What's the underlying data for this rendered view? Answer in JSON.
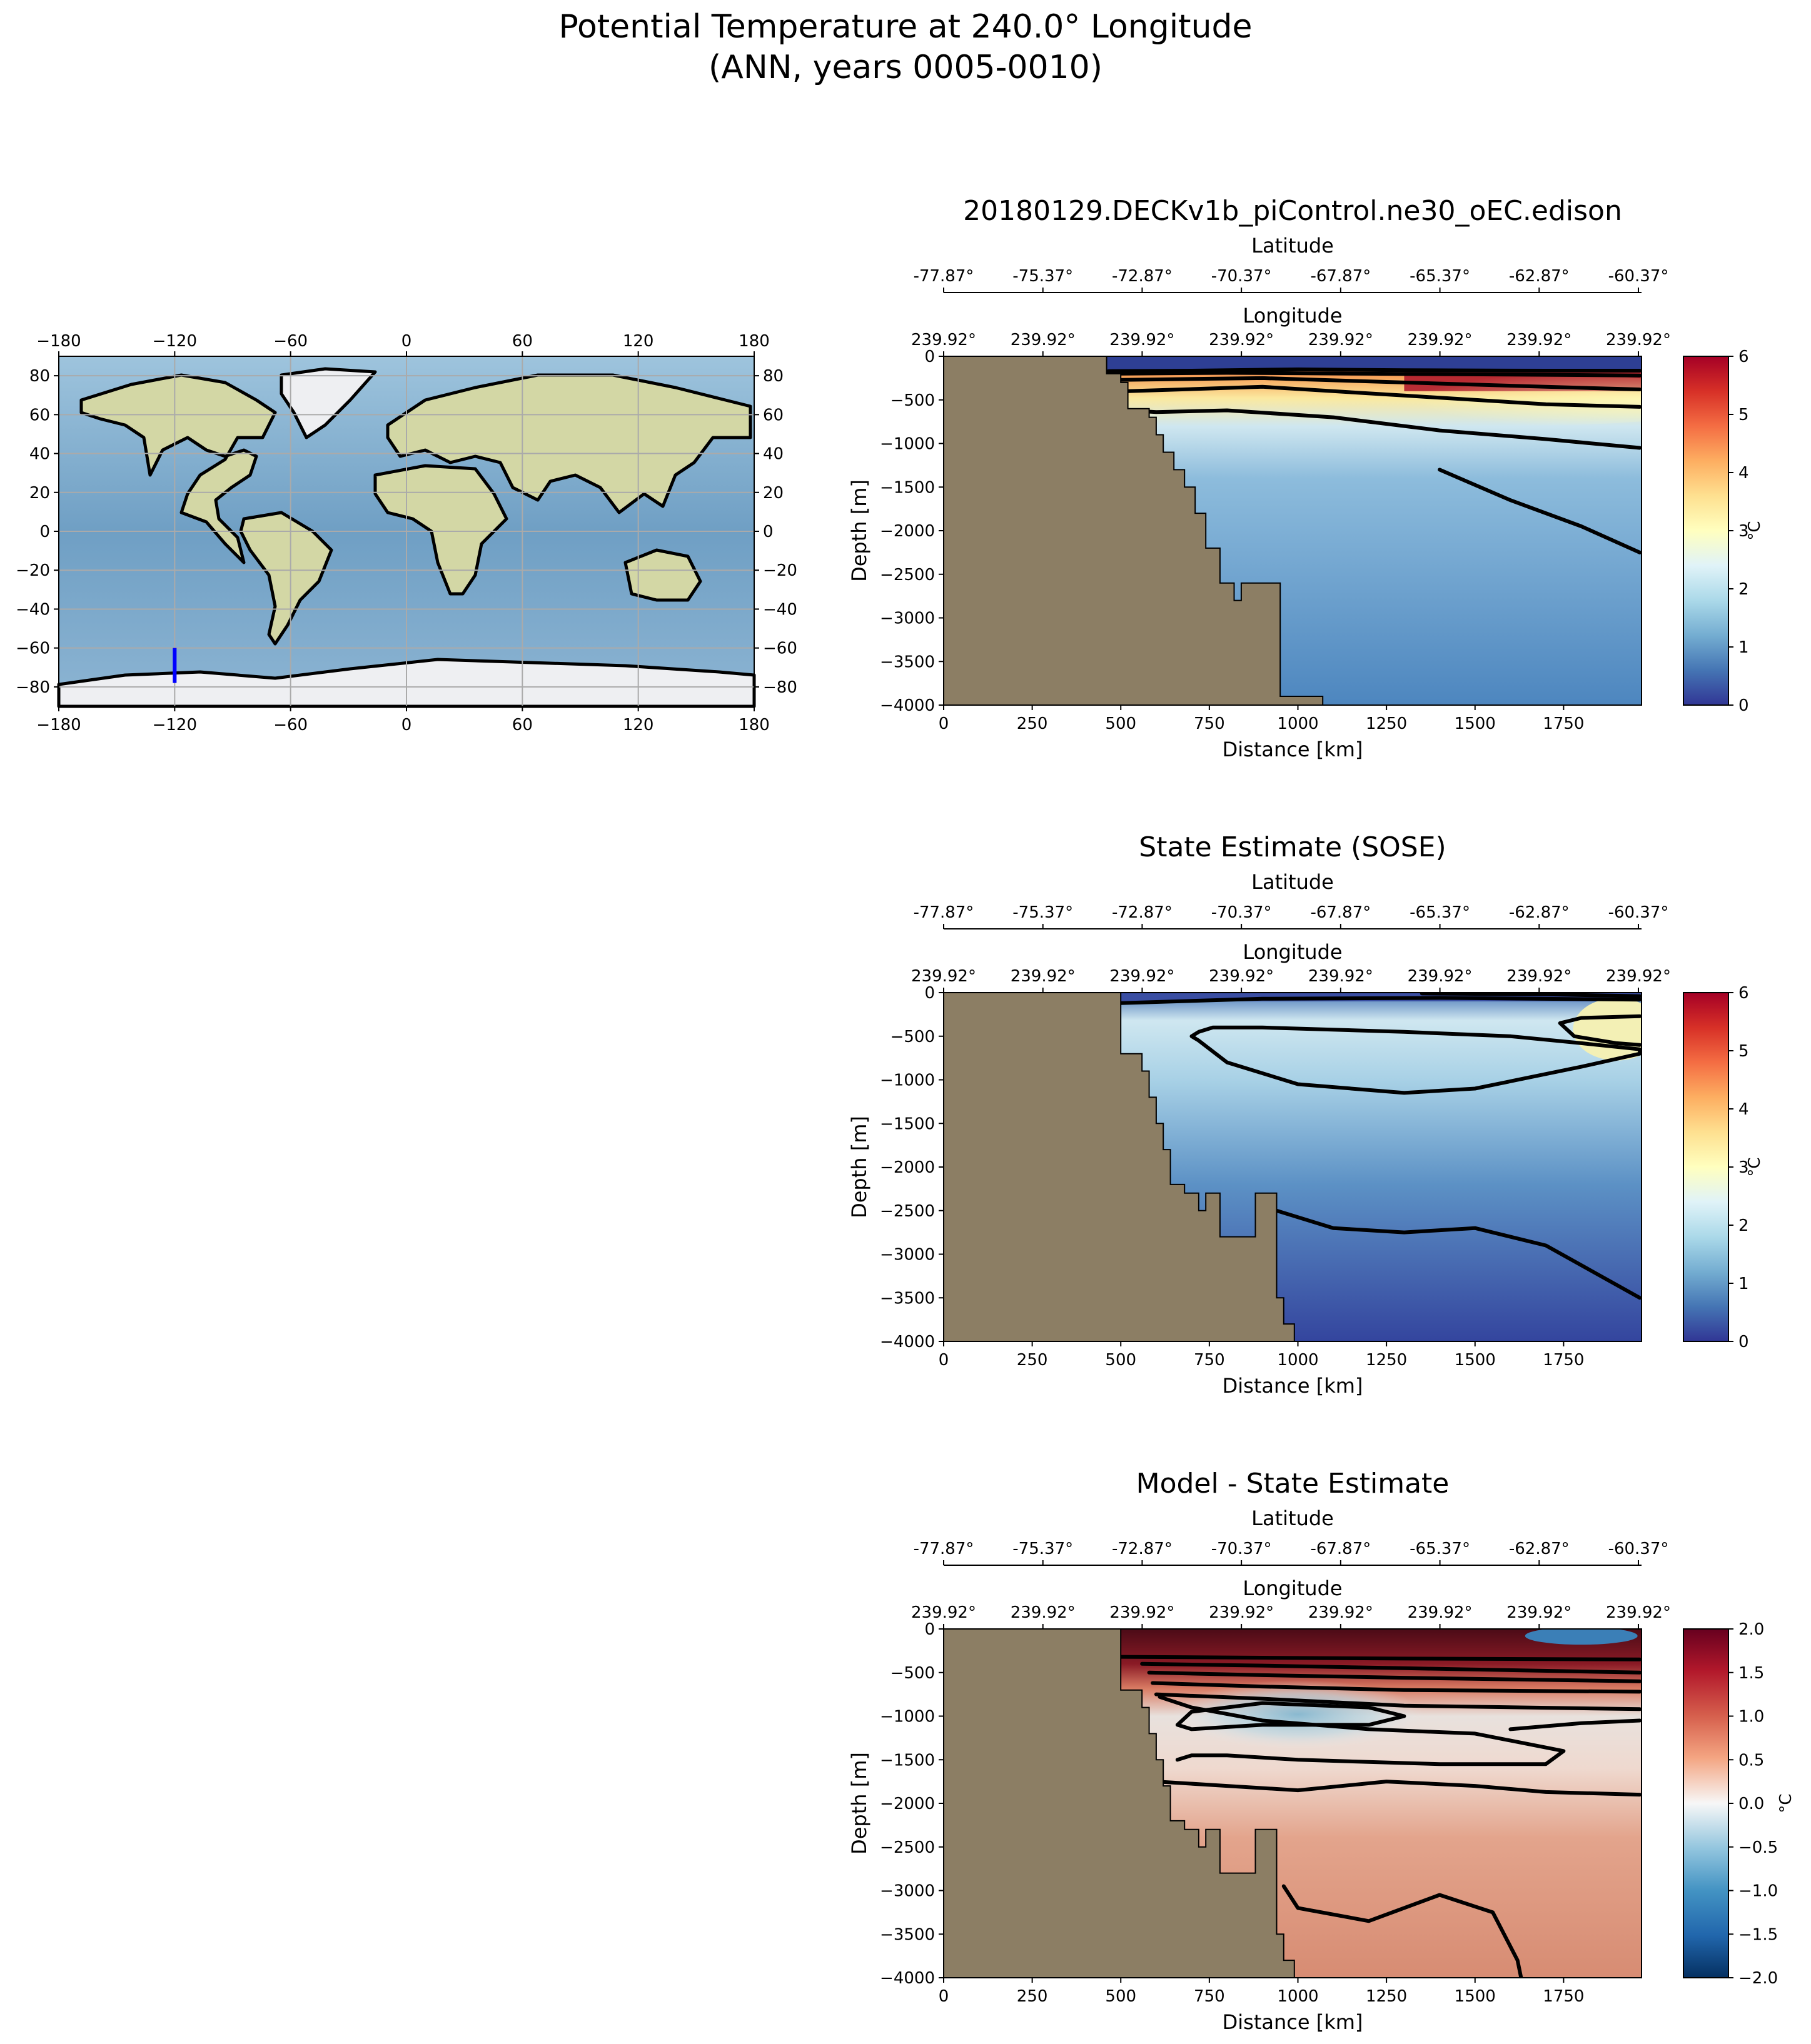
{
  "figure": {
    "title_line1": "Potential Temperature at 240.0° Longitude",
    "title_line2": "(ANN, years 0005-0010)",
    "land_color": "#8c7e64",
    "contour_color": "#000000",
    "section_color": "#0000ff"
  },
  "chart_data": [
    {
      "type": "map",
      "projection": "PlateCarree",
      "xlim": [
        -180,
        180
      ],
      "ylim": [
        -90,
        90
      ],
      "x_ticks": [
        "−180",
        "−120",
        "−60",
        "0",
        "60",
        "120",
        "180"
      ],
      "y_ticks": [
        "80",
        "60",
        "40",
        "20",
        "0",
        "−20",
        "−40",
        "−60",
        "−80"
      ],
      "grid": true,
      "section_line": {
        "lon": -120,
        "lat": [
          -78,
          -60
        ],
        "color": "#0000ff"
      }
    },
    {
      "type": "heatmap",
      "title": "20180129.DECKv1b_piControl.ne30_oEC.edison",
      "top_axis_1_label": "Latitude",
      "top_axis_1_ticks": [
        "-77.87°",
        "-75.37°",
        "-72.87°",
        "-70.37°",
        "-67.87°",
        "-65.37°",
        "-62.87°",
        "-60.37°"
      ],
      "top_axis_2_label": "Longitude",
      "top_axis_2_ticks": [
        "239.92°",
        "239.92°",
        "239.92°",
        "239.92°",
        "239.92°",
        "239.92°",
        "239.92°",
        "239.92°"
      ],
      "xlabel": "Distance [km]",
      "ylabel": "Depth [m]",
      "x_ticks": [
        0,
        250,
        500,
        750,
        1000,
        1250,
        1500,
        1750
      ],
      "xlim": [
        0,
        1970
      ],
      "y_ticks": [
        0,
        -500,
        -1000,
        -1500,
        -2000,
        -2500,
        -3000,
        -3500,
        -4000
      ],
      "ylim": [
        -4000,
        0
      ],
      "colormap": "RdYlBu_r",
      "colorbar_range": [
        0,
        6
      ],
      "colorbar_ticks": [
        0,
        1,
        2,
        3,
        4,
        5,
        6
      ],
      "colorbar_label": "°C",
      "bathymetry": [
        [
          0,
          0
        ],
        [
          460,
          0
        ],
        [
          460,
          -200
        ],
        [
          500,
          -200
        ],
        [
          500,
          -300
        ],
        [
          520,
          -300
        ],
        [
          520,
          -600
        ],
        [
          580,
          -600
        ],
        [
          580,
          -700
        ],
        [
          600,
          -700
        ],
        [
          600,
          -900
        ],
        [
          620,
          -900
        ],
        [
          620,
          -1100
        ],
        [
          650,
          -1100
        ],
        [
          650,
          -1300
        ],
        [
          680,
          -1300
        ],
        [
          680,
          -1500
        ],
        [
          710,
          -1500
        ],
        [
          710,
          -1800
        ],
        [
          740,
          -1800
        ],
        [
          740,
          -2200
        ],
        [
          780,
          -2200
        ],
        [
          780,
          -2600
        ],
        [
          820,
          -2600
        ],
        [
          820,
          -2800
        ],
        [
          840,
          -2800
        ],
        [
          840,
          -2600
        ],
        [
          950,
          -2600
        ],
        [
          950,
          -3900
        ],
        [
          1070,
          -3900
        ],
        [
          1070,
          -4000
        ],
        [
          0,
          -4000
        ]
      ],
      "contours": [
        [
          [
            465,
            -170
          ],
          [
            700,
            -165
          ],
          [
            1000,
            -150
          ],
          [
            1300,
            -160
          ],
          [
            1700,
            -165
          ],
          [
            1965,
            -165
          ]
        ],
        [
          [
            465,
            -200
          ],
          [
            800,
            -190
          ],
          [
            1200,
            -200
          ],
          [
            1600,
            -210
          ],
          [
            1965,
            -220
          ]
        ],
        [
          [
            500,
            -270
          ],
          [
            900,
            -250
          ],
          [
            1300,
            -300
          ],
          [
            1700,
            -350
          ],
          [
            1965,
            -380
          ]
        ],
        [
          [
            520,
            -400
          ],
          [
            900,
            -350
          ],
          [
            1300,
            -450
          ],
          [
            1700,
            -550
          ],
          [
            1965,
            -580
          ]
        ],
        [
          [
            520,
            -620
          ],
          [
            600,
            -640
          ],
          [
            800,
            -620
          ],
          [
            1100,
            -700
          ],
          [
            1400,
            -850
          ],
          [
            1700,
            -950
          ],
          [
            1965,
            -1050
          ]
        ],
        [
          [
            1400,
            -1300
          ],
          [
            1600,
            -1650
          ],
          [
            1800,
            -1950
          ],
          [
            1965,
            -2250
          ]
        ]
      ],
      "field_notes": "surface layer warm (up to 6°C) offshore, cold (~0°C) near shelf; deep water ~1°C"
    },
    {
      "type": "heatmap",
      "title": "State Estimate (SOSE)",
      "top_axis_1_label": "Latitude",
      "top_axis_1_ticks": [
        "-77.87°",
        "-75.37°",
        "-72.87°",
        "-70.37°",
        "-67.87°",
        "-65.37°",
        "-62.87°",
        "-60.37°"
      ],
      "top_axis_2_label": "Longitude",
      "top_axis_2_ticks": [
        "239.92°",
        "239.92°",
        "239.92°",
        "239.92°",
        "239.92°",
        "239.92°",
        "239.92°",
        "239.92°"
      ],
      "xlabel": "Distance [km]",
      "ylabel": "Depth [m]",
      "x_ticks": [
        0,
        250,
        500,
        750,
        1000,
        1250,
        1500,
        1750
      ],
      "xlim": [
        0,
        1970
      ],
      "y_ticks": [
        0,
        -500,
        -1000,
        -1500,
        -2000,
        -2500,
        -3000,
        -3500,
        -4000
      ],
      "ylim": [
        -4000,
        0
      ],
      "colormap": "RdYlBu_r",
      "colorbar_range": [
        0,
        6
      ],
      "colorbar_ticks": [
        0,
        1,
        2,
        3,
        4,
        5,
        6
      ],
      "colorbar_label": "°C",
      "bathymetry": [
        [
          0,
          0
        ],
        [
          500,
          0
        ],
        [
          500,
          -700
        ],
        [
          560,
          -700
        ],
        [
          560,
          -900
        ],
        [
          580,
          -900
        ],
        [
          580,
          -1200
        ],
        [
          600,
          -1200
        ],
        [
          600,
          -1500
        ],
        [
          620,
          -1500
        ],
        [
          620,
          -1800
        ],
        [
          640,
          -1800
        ],
        [
          640,
          -2200
        ],
        [
          680,
          -2200
        ],
        [
          680,
          -2300
        ],
        [
          720,
          -2300
        ],
        [
          720,
          -2500
        ],
        [
          740,
          -2500
        ],
        [
          740,
          -2300
        ],
        [
          780,
          -2300
        ],
        [
          780,
          -2800
        ],
        [
          880,
          -2800
        ],
        [
          880,
          -2300
        ],
        [
          940,
          -2300
        ],
        [
          940,
          -3500
        ],
        [
          960,
          -3500
        ],
        [
          960,
          -3800
        ],
        [
          990,
          -3800
        ],
        [
          990,
          -4000
        ],
        [
          0,
          -4000
        ]
      ],
      "contours": [
        [
          [
            500,
            -120
          ],
          [
            900,
            -70
          ],
          [
            1400,
            -60
          ],
          [
            1965,
            -80
          ]
        ],
        [
          [
            1350,
            -10
          ],
          [
            1700,
            -20
          ],
          [
            1965,
            -40
          ]
        ],
        [
          [
            1965,
            -270
          ],
          [
            1800,
            -290
          ],
          [
            1740,
            -350
          ],
          [
            1780,
            -500
          ],
          [
            1900,
            -580
          ],
          [
            1965,
            -600
          ]
        ],
        [
          [
            720,
            -450
          ],
          [
            760,
            -400
          ],
          [
            900,
            -400
          ],
          [
            1300,
            -450
          ],
          [
            1600,
            -500
          ],
          [
            1800,
            -580
          ],
          [
            1965,
            -650
          ],
          [
            1965,
            -700
          ],
          [
            1800,
            -850
          ],
          [
            1500,
            -1100
          ],
          [
            1300,
            -1150
          ],
          [
            1000,
            -1050
          ],
          [
            800,
            -800
          ],
          [
            720,
            -550
          ],
          [
            700,
            -500
          ],
          [
            720,
            -450
          ]
        ],
        [
          [
            900,
            -2450
          ],
          [
            1100,
            -2700
          ],
          [
            1300,
            -2750
          ],
          [
            1500,
            -2700
          ],
          [
            1700,
            -2900
          ],
          [
            1965,
            -3500
          ]
        ]
      ],
      "field_notes": "surface cold (~0-1°C), subsurface warm core ~2-3°C, deep water ~0.5°C"
    },
    {
      "type": "heatmap",
      "title": "Model - State Estimate",
      "top_axis_1_label": "Latitude",
      "top_axis_1_ticks": [
        "-77.87°",
        "-75.37°",
        "-72.87°",
        "-70.37°",
        "-67.87°",
        "-65.37°",
        "-62.87°",
        "-60.37°"
      ],
      "top_axis_2_label": "Longitude",
      "top_axis_2_ticks": [
        "239.92°",
        "239.92°",
        "239.92°",
        "239.92°",
        "239.92°",
        "239.92°",
        "239.92°",
        "239.92°"
      ],
      "xlabel": "Distance [km]",
      "ylabel": "Depth [m]",
      "x_ticks": [
        0,
        250,
        500,
        750,
        1000,
        1250,
        1500,
        1750
      ],
      "xlim": [
        0,
        1970
      ],
      "y_ticks": [
        0,
        -500,
        -1000,
        -1500,
        -2000,
        -2500,
        -3000,
        -3500,
        -4000
      ],
      "ylim": [
        -4000,
        0
      ],
      "colormap": "RdBu_r",
      "colorbar_range": [
        -2,
        2
      ],
      "colorbar_ticks": [
        2.0,
        1.5,
        1.0,
        0.5,
        0.0,
        -0.5,
        -1.0,
        -1.5,
        -2.0
      ],
      "colorbar_tick_labels": [
        "2.0",
        "1.5",
        "1.0",
        "0.5",
        "0.0",
        "−0.5",
        "−1.0",
        "−1.5",
        "−2.0"
      ],
      "colorbar_label": "°C",
      "bathymetry": [
        [
          0,
          0
        ],
        [
          500,
          0
        ],
        [
          500,
          -700
        ],
        [
          560,
          -700
        ],
        [
          560,
          -900
        ],
        [
          580,
          -900
        ],
        [
          580,
          -1200
        ],
        [
          600,
          -1200
        ],
        [
          600,
          -1500
        ],
        [
          620,
          -1500
        ],
        [
          620,
          -1800
        ],
        [
          640,
          -1800
        ],
        [
          640,
          -2200
        ],
        [
          680,
          -2200
        ],
        [
          680,
          -2300
        ],
        [
          720,
          -2300
        ],
        [
          720,
          -2500
        ],
        [
          740,
          -2500
        ],
        [
          740,
          -2300
        ],
        [
          780,
          -2300
        ],
        [
          780,
          -2800
        ],
        [
          880,
          -2800
        ],
        [
          880,
          -2300
        ],
        [
          940,
          -2300
        ],
        [
          940,
          -3500
        ],
        [
          960,
          -3500
        ],
        [
          960,
          -3800
        ],
        [
          990,
          -3800
        ],
        [
          990,
          -4000
        ],
        [
          0,
          -4000
        ]
      ],
      "contours": [
        [
          [
            500,
            -320
          ],
          [
            900,
            -330
          ],
          [
            1300,
            -340
          ],
          [
            1965,
            -350
          ]
        ],
        [
          [
            560,
            -400
          ],
          [
            900,
            -420
          ],
          [
            1300,
            -450
          ],
          [
            1965,
            -500
          ]
        ],
        [
          [
            580,
            -500
          ],
          [
            900,
            -530
          ],
          [
            1300,
            -560
          ],
          [
            1965,
            -600
          ]
        ],
        [
          [
            590,
            -620
          ],
          [
            900,
            -660
          ],
          [
            1300,
            -700
          ],
          [
            1965,
            -720
          ]
        ],
        [
          [
            600,
            -750
          ],
          [
            900,
            -800
          ],
          [
            1300,
            -880
          ],
          [
            1965,
            -920
          ]
        ],
        [
          [
            610,
            -780
          ],
          [
            700,
            -900
          ],
          [
            900,
            -1050
          ],
          [
            1200,
            -1150
          ],
          [
            1500,
            -1200
          ],
          [
            1750,
            -1400
          ],
          [
            1700,
            -1550
          ],
          [
            1400,
            -1550
          ],
          [
            1000,
            -1500
          ],
          [
            800,
            -1450
          ],
          [
            700,
            -1450
          ],
          [
            660,
            -1500
          ]
        ],
        [
          [
            1965,
            -1050
          ],
          [
            1800,
            -1080
          ],
          [
            1600,
            -1150
          ]
        ],
        [
          [
            600,
            -1750
          ],
          [
            800,
            -1800
          ],
          [
            1000,
            -1850
          ],
          [
            1250,
            -1750
          ],
          [
            1500,
            -1800
          ],
          [
            1700,
            -1870
          ],
          [
            1965,
            -1900
          ]
        ],
        [
          [
            960,
            -2950
          ],
          [
            1000,
            -3200
          ],
          [
            1200,
            -3350
          ],
          [
            1400,
            -3050
          ],
          [
            1550,
            -3250
          ],
          [
            1620,
            -3800
          ],
          [
            1630,
            -4000
          ]
        ],
        [
          [
            660,
            -1100
          ],
          [
            700,
            -950
          ],
          [
            900,
            -850
          ],
          [
            1200,
            -900
          ],
          [
            1300,
            -1000
          ],
          [
            1200,
            -1100
          ],
          [
            900,
            -1100
          ],
          [
            700,
            -1150
          ],
          [
            660,
            -1100
          ]
        ]
      ],
      "field_notes": "positive bias (+1 to +2°C) in upper 800 m, near-zero/negative patch near -1000 m, positive +0.5°C at depth"
    }
  ]
}
